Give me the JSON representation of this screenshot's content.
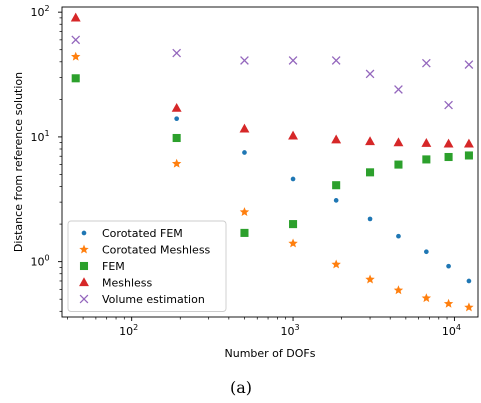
{
  "caption": "(a)",
  "chart_data": {
    "type": "scatter",
    "xscale": "log",
    "yscale": "log",
    "xlim": [
      37,
      14000
    ],
    "ylim": [
      0.36,
      110
    ],
    "xlabel": "Number of DOFs",
    "ylabel": "Distance from reference solution",
    "x_major_ticks": [
      100,
      1000,
      10000
    ],
    "x_tick_labels": [
      "10^2",
      "10^3",
      "10^4"
    ],
    "y_major_ticks": [
      1,
      10,
      100
    ],
    "y_tick_labels": [
      "10^0",
      "10^1",
      "10^2"
    ],
    "grid": false,
    "legend_position": "lower-left",
    "series": [
      {
        "name": "Corotated FEM",
        "marker": "dot",
        "color": "#1f77b4",
        "points": [
          [
            45,
            29
          ],
          [
            190,
            14
          ],
          [
            500,
            7.5
          ],
          [
            1000,
            4.6
          ],
          [
            1850,
            3.1
          ],
          [
            3000,
            2.2
          ],
          [
            4500,
            1.6
          ],
          [
            6700,
            1.2
          ],
          [
            9200,
            0.92
          ],
          [
            12300,
            0.7
          ]
        ]
      },
      {
        "name": "Corotated Meshless",
        "marker": "star",
        "color": "#ff7f0e",
        "points": [
          [
            45,
            44
          ],
          [
            190,
            6.1
          ],
          [
            500,
            2.5
          ],
          [
            1000,
            1.4
          ],
          [
            1850,
            0.95
          ],
          [
            3000,
            0.72
          ],
          [
            4500,
            0.59
          ],
          [
            6700,
            0.51
          ],
          [
            9200,
            0.46
          ],
          [
            12300,
            0.43
          ]
        ]
      },
      {
        "name": "FEM",
        "marker": "square",
        "color": "#2ca02c",
        "points": [
          [
            45,
            29.5
          ],
          [
            190,
            9.8
          ],
          [
            500,
            1.7
          ],
          [
            1000,
            2.0
          ],
          [
            1850,
            4.1
          ],
          [
            3000,
            5.2
          ],
          [
            4500,
            6.0
          ],
          [
            6700,
            6.6
          ],
          [
            9200,
            6.9
          ],
          [
            12300,
            7.1
          ]
        ]
      },
      {
        "name": "Meshless",
        "marker": "triangle",
        "color": "#d62728",
        "points": [
          [
            45,
            90
          ],
          [
            190,
            17
          ],
          [
            500,
            11.6
          ],
          [
            1000,
            10.2
          ],
          [
            1850,
            9.5
          ],
          [
            3000,
            9.2
          ],
          [
            4500,
            9.0
          ],
          [
            6700,
            8.9
          ],
          [
            9200,
            8.8
          ],
          [
            12300,
            8.8
          ]
        ]
      },
      {
        "name": "Volume estimation",
        "marker": "x",
        "color": "#9467bd",
        "points": [
          [
            45,
            60
          ],
          [
            190,
            47
          ],
          [
            500,
            41
          ],
          [
            1000,
            41
          ],
          [
            1850,
            41
          ],
          [
            3000,
            32
          ],
          [
            4500,
            24
          ],
          [
            6700,
            39
          ],
          [
            9200,
            18
          ],
          [
            12300,
            38
          ]
        ]
      }
    ]
  }
}
